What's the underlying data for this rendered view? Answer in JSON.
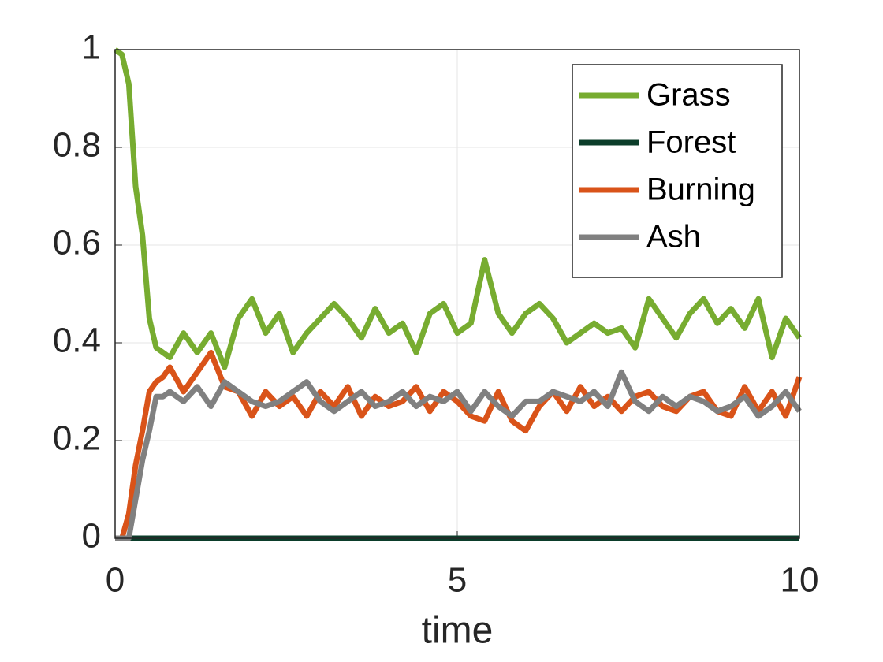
{
  "chart_data": {
    "type": "line",
    "xlabel": "time",
    "x": [
      0,
      0.1,
      0.2,
      0.3,
      0.4,
      0.5,
      0.6,
      0.7,
      0.8,
      1.0,
      1.2,
      1.4,
      1.6,
      1.8,
      2.0,
      2.2,
      2.4,
      2.6,
      2.8,
      3.0,
      3.2,
      3.4,
      3.6,
      3.8,
      4.0,
      4.2,
      4.4,
      4.6,
      4.8,
      5.0,
      5.2,
      5.4,
      5.6,
      5.8,
      6.0,
      6.2,
      6.4,
      6.6,
      6.8,
      7.0,
      7.2,
      7.4,
      7.6,
      7.8,
      8.0,
      8.2,
      8.4,
      8.6,
      8.8,
      9.0,
      9.2,
      9.4,
      9.6,
      9.8,
      10.0
    ],
    "series": [
      {
        "name": "Grass",
        "color": "#77ac30",
        "values": [
          1,
          0.99,
          0.93,
          0.72,
          0.62,
          0.45,
          0.39,
          0.38,
          0.37,
          0.42,
          0.38,
          0.42,
          0.35,
          0.45,
          0.49,
          0.42,
          0.46,
          0.38,
          0.42,
          0.45,
          0.48,
          0.45,
          0.41,
          0.47,
          0.42,
          0.44,
          0.38,
          0.46,
          0.48,
          0.42,
          0.44,
          0.57,
          0.46,
          0.42,
          0.46,
          0.48,
          0.45,
          0.4,
          0.42,
          0.44,
          0.42,
          0.43,
          0.39,
          0.49,
          0.45,
          0.41,
          0.46,
          0.49,
          0.44,
          0.47,
          0.43,
          0.49,
          0.37,
          0.45,
          0.41
        ]
      },
      {
        "name": "Forest",
        "color": "#0b3d2a",
        "values": [
          0,
          0,
          0,
          0,
          0,
          0,
          0,
          0,
          0,
          0,
          0,
          0,
          0,
          0,
          0,
          0,
          0,
          0,
          0,
          0,
          0,
          0,
          0,
          0,
          0,
          0,
          0,
          0,
          0,
          0,
          0,
          0,
          0,
          0,
          0,
          0,
          0,
          0,
          0,
          0,
          0,
          0,
          0,
          0,
          0,
          0,
          0,
          0,
          0,
          0,
          0,
          0,
          0,
          0,
          0
        ]
      },
      {
        "name": "Burning",
        "color": "#d95319",
        "values": [
          0,
          0,
          0.05,
          0.15,
          0.22,
          0.3,
          0.32,
          0.33,
          0.35,
          0.3,
          0.34,
          0.38,
          0.31,
          0.3,
          0.25,
          0.3,
          0.27,
          0.29,
          0.25,
          0.3,
          0.27,
          0.31,
          0.25,
          0.29,
          0.27,
          0.28,
          0.31,
          0.26,
          0.3,
          0.28,
          0.25,
          0.24,
          0.3,
          0.24,
          0.22,
          0.27,
          0.3,
          0.26,
          0.31,
          0.27,
          0.29,
          0.26,
          0.29,
          0.3,
          0.27,
          0.26,
          0.29,
          0.3,
          0.26,
          0.25,
          0.31,
          0.26,
          0.3,
          0.25,
          0.33
        ]
      },
      {
        "name": "Ash",
        "color": "#808080",
        "values": [
          0,
          0,
          0,
          0.08,
          0.16,
          0.22,
          0.29,
          0.29,
          0.3,
          0.28,
          0.31,
          0.27,
          0.32,
          0.3,
          0.28,
          0.27,
          0.28,
          0.3,
          0.32,
          0.28,
          0.26,
          0.28,
          0.3,
          0.27,
          0.28,
          0.3,
          0.27,
          0.29,
          0.28,
          0.3,
          0.26,
          0.3,
          0.27,
          0.25,
          0.28,
          0.28,
          0.3,
          0.29,
          0.28,
          0.3,
          0.27,
          0.34,
          0.28,
          0.26,
          0.29,
          0.27,
          0.29,
          0.28,
          0.26,
          0.27,
          0.29,
          0.25,
          0.27,
          0.3,
          0.26
        ]
      }
    ],
    "xlim": [
      0,
      10
    ],
    "xticks": [
      0,
      5,
      10
    ],
    "ylim": [
      0,
      1
    ],
    "yticks": [
      0,
      0.2,
      0.4,
      0.6,
      0.8,
      1
    ],
    "grid": true,
    "legend": "top-right"
  }
}
